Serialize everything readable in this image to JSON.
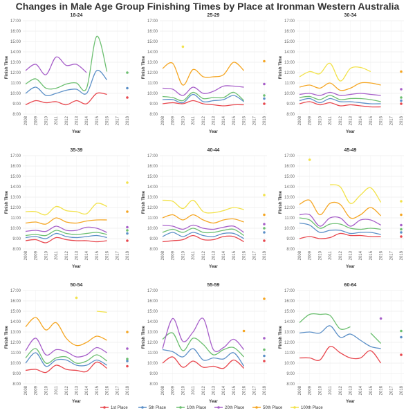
{
  "title": "Changes in Male Age Group Finishing Times by Place at Ironman Western Australia",
  "x": [
    2008,
    2009,
    2010,
    2011,
    2012,
    2013,
    2014,
    2015,
    2016,
    2017,
    2018
  ],
  "ylim": [
    8,
    17
  ],
  "yticks": [
    {
      "value": 8,
      "label": "8:00"
    },
    {
      "value": 9,
      "label": "9:00"
    },
    {
      "value": 10,
      "label": "10:00"
    },
    {
      "value": 11,
      "label": "11:00"
    },
    {
      "value": 12,
      "label": "12:00"
    },
    {
      "value": 13,
      "label": "13:00"
    },
    {
      "value": 14,
      "label": "14:00"
    },
    {
      "value": 15,
      "label": "15:00"
    },
    {
      "value": 16,
      "label": "16:00"
    },
    {
      "value": 17,
      "label": "17:00"
    }
  ],
  "xlabel": "Year",
  "ylabel": "Finish Time",
  "grid": true,
  "legend": [
    {
      "name": "1st Place",
      "color": "#e8474e"
    },
    {
      "name": "5th Place",
      "color": "#5b8fc7"
    },
    {
      "name": "10th Place",
      "color": "#6cbf70"
    },
    {
      "name": "20th Place",
      "color": "#a75fc9"
    },
    {
      "name": "50th Place",
      "color": "#f5a623"
    },
    {
      "name": "100th Place",
      "color": "#f2e24a"
    }
  ],
  "chart_data": [
    {
      "type": "line",
      "title": "18-24",
      "series": [
        {
          "values": [
            8.9,
            9.3,
            9.1,
            9.2,
            8.9,
            9.3,
            9.0,
            10.0,
            9.9,
            null,
            9.6
          ]
        },
        {
          "values": [
            10.0,
            10.6,
            9.8,
            10.0,
            10.3,
            10.4,
            10.0,
            12.2,
            11.3,
            null,
            10.5
          ]
        },
        {
          "values": [
            10.9,
            11.4,
            10.5,
            10.5,
            10.9,
            11.0,
            10.5,
            15.5,
            12.1,
            null,
            12.0
          ]
        },
        {
          "values": [
            12.2,
            12.8,
            11.8,
            13.5,
            12.7,
            12.8,
            12.0,
            null,
            null,
            null,
            null
          ]
        },
        {
          "values": [
            null,
            null,
            null,
            null,
            null,
            null,
            null,
            null,
            null,
            null,
            null
          ]
        },
        {
          "values": [
            null,
            null,
            null,
            null,
            null,
            null,
            null,
            null,
            null,
            null,
            null
          ]
        }
      ]
    },
    {
      "type": "line",
      "title": "25-29",
      "series": [
        {
          "values": [
            9.0,
            9.1,
            9.0,
            9.3,
            9.0,
            8.9,
            8.8,
            8.9,
            8.9,
            null,
            9.0
          ]
        },
        {
          "values": [
            9.4,
            9.4,
            9.1,
            9.9,
            9.2,
            9.3,
            9.4,
            9.8,
            9.2,
            null,
            9.5
          ]
        },
        {
          "values": [
            9.7,
            9.6,
            9.3,
            10.1,
            9.5,
            9.6,
            9.6,
            10.1,
            9.3,
            null,
            9.8
          ]
        },
        {
          "values": [
            10.5,
            10.4,
            9.8,
            10.6,
            10.0,
            10.2,
            10.7,
            10.7,
            10.6,
            null,
            10.9
          ]
        },
        {
          "values": [
            12.4,
            12.9,
            10.8,
            12.3,
            11.6,
            11.6,
            11.8,
            13.0,
            12.2,
            null,
            13.1
          ]
        },
        {
          "values": [
            null,
            null,
            14.5,
            null,
            null,
            null,
            null,
            null,
            null,
            null,
            null
          ]
        }
      ]
    },
    {
      "type": "line",
      "title": "30-34",
      "series": [
        {
          "values": [
            9.0,
            9.2,
            8.9,
            9.1,
            8.8,
            8.9,
            8.8,
            8.7,
            8.7,
            null,
            9.0
          ]
        },
        {
          "values": [
            9.3,
            9.5,
            9.1,
            9.5,
            9.2,
            9.2,
            9.1,
            9.0,
            9.0,
            null,
            9.3
          ]
        },
        {
          "values": [
            9.6,
            9.7,
            9.4,
            9.8,
            9.4,
            9.5,
            9.5,
            9.4,
            9.2,
            null,
            9.6
          ]
        },
        {
          "values": [
            9.9,
            10.0,
            9.8,
            10.1,
            9.8,
            9.9,
            10.0,
            9.9,
            9.8,
            null,
            10.4
          ]
        },
        {
          "values": [
            10.6,
            10.8,
            10.5,
            11.0,
            10.3,
            10.5,
            11.0,
            11.0,
            10.8,
            null,
            12.1
          ]
        },
        {
          "values": [
            11.6,
            12.1,
            11.9,
            12.9,
            11.2,
            12.4,
            12.5,
            12.1,
            null,
            null,
            null
          ]
        }
      ]
    },
    {
      "type": "line",
      "title": "35-39",
      "series": [
        {
          "values": [
            8.8,
            8.9,
            8.6,
            9.1,
            8.9,
            8.8,
            8.8,
            8.7,
            8.8,
            null,
            8.8
          ]
        },
        {
          "values": [
            9.1,
            9.2,
            9.0,
            9.5,
            9.2,
            9.1,
            9.2,
            9.3,
            9.1,
            null,
            9.5
          ]
        },
        {
          "values": [
            9.3,
            9.4,
            9.3,
            9.8,
            9.5,
            9.4,
            9.5,
            9.6,
            9.4,
            null,
            9.8
          ]
        },
        {
          "values": [
            9.7,
            9.8,
            9.7,
            10.2,
            9.8,
            9.8,
            10.1,
            10.0,
            9.6,
            null,
            10.1
          ]
        },
        {
          "values": [
            10.5,
            10.6,
            10.4,
            11.0,
            10.6,
            10.5,
            10.7,
            10.8,
            10.8,
            null,
            11.6
          ]
        },
        {
          "values": [
            11.6,
            11.6,
            11.3,
            12.1,
            11.7,
            11.6,
            11.4,
            12.4,
            12.1,
            null,
            14.4
          ]
        }
      ]
    },
    {
      "type": "line",
      "title": "40-44",
      "series": [
        {
          "values": [
            8.7,
            8.8,
            8.9,
            9.3,
            8.9,
            8.9,
            9.2,
            9.2,
            8.7,
            null,
            8.8
          ]
        },
        {
          "values": [
            9.2,
            9.6,
            9.2,
            9.6,
            9.3,
            9.2,
            9.5,
            9.5,
            9.0,
            null,
            9.6
          ]
        },
        {
          "values": [
            9.6,
            9.9,
            9.6,
            10.0,
            9.6,
            9.6,
            9.8,
            9.9,
            9.3,
            null,
            10.0
          ]
        },
        {
          "values": [
            10.3,
            10.2,
            9.9,
            10.3,
            10.0,
            9.9,
            10.1,
            10.2,
            9.6,
            null,
            10.4
          ]
        },
        {
          "values": [
            11.0,
            11.3,
            10.8,
            11.3,
            10.8,
            10.5,
            10.8,
            10.9,
            10.6,
            null,
            11.3
          ]
        },
        {
          "values": [
            12.7,
            12.6,
            11.9,
            12.7,
            11.6,
            11.5,
            11.7,
            12.0,
            11.8,
            null,
            13.2
          ]
        }
      ]
    },
    {
      "type": "line",
      "title": "45-49",
      "series": [
        {
          "values": [
            9.0,
            9.2,
            9.0,
            9.1,
            9.5,
            9.3,
            9.3,
            9.2,
            9.2,
            null,
            9.2
          ]
        },
        {
          "values": [
            10.5,
            10.3,
            9.6,
            9.8,
            9.8,
            9.5,
            9.6,
            9.6,
            9.4,
            null,
            9.6
          ]
        },
        {
          "values": [
            11.0,
            10.8,
            10.0,
            10.4,
            10.4,
            10.0,
            9.9,
            10.0,
            9.9,
            null,
            9.9
          ]
        },
        {
          "values": [
            11.3,
            11.3,
            10.2,
            11.0,
            11.0,
            10.2,
            10.8,
            10.8,
            10.3,
            null,
            10.3
          ]
        },
        {
          "values": [
            12.3,
            12.7,
            11.3,
            12.4,
            12.3,
            11.0,
            11.3,
            12.0,
            11.2,
            null,
            11.3
          ]
        },
        {
          "values": [
            null,
            16.6,
            null,
            14.2,
            14.0,
            12.4,
            13.2,
            13.9,
            12.5,
            null,
            12.6
          ]
        }
      ]
    },
    {
      "type": "line",
      "title": "50-54",
      "series": [
        {
          "values": [
            9.3,
            9.4,
            9.1,
            9.8,
            9.4,
            9.3,
            9.2,
            10.1,
            9.5,
            null,
            9.7
          ]
        },
        {
          "values": [
            10.0,
            11.0,
            9.7,
            10.3,
            10.3,
            9.8,
            9.8,
            10.3,
            9.8,
            null,
            10.2
          ]
        },
        {
          "values": [
            10.5,
            11.4,
            10.0,
            10.5,
            10.6,
            10.0,
            10.2,
            10.8,
            10.2,
            null,
            10.4
          ]
        },
        {
          "values": [
            11.2,
            12.4,
            10.8,
            11.3,
            11.1,
            10.6,
            10.8,
            11.5,
            11.0,
            null,
            11.4
          ]
        },
        {
          "values": [
            13.5,
            14.4,
            13.2,
            13.9,
            12.4,
            11.7,
            12.0,
            12.6,
            12.2,
            null,
            13.0
          ]
        },
        {
          "values": [
            null,
            null,
            null,
            null,
            null,
            16.3,
            null,
            15.0,
            14.9,
            null,
            null
          ]
        }
      ]
    },
    {
      "type": "line",
      "title": "55-59",
      "series": [
        {
          "values": [
            10.0,
            10.6,
            9.6,
            10.2,
            9.6,
            9.7,
            9.5,
            10.3,
            9.5,
            null,
            10.2
          ]
        },
        {
          "values": [
            11.3,
            11.1,
            10.6,
            11.4,
            10.3,
            10.5,
            10.4,
            11.0,
            9.7,
            null,
            10.7
          ]
        },
        {
          "values": [
            12.3,
            12.9,
            11.2,
            12.4,
            11.8,
            10.8,
            11.3,
            11.5,
            10.6,
            null,
            11.3
          ]
        },
        {
          "values": [
            11.4,
            14.3,
            12.1,
            13.0,
            14.3,
            11.3,
            11.5,
            12.3,
            11.3,
            null,
            12.4
          ]
        },
        {
          "values": [
            null,
            null,
            null,
            null,
            null,
            null,
            null,
            null,
            13.1,
            null,
            16.2
          ]
        },
        {
          "values": [
            null,
            null,
            null,
            null,
            null,
            null,
            null,
            null,
            null,
            null,
            null
          ]
        }
      ]
    },
    {
      "type": "line",
      "title": "60-64",
      "series": [
        {
          "values": [
            10.5,
            10.5,
            10.3,
            11.6,
            11.0,
            10.5,
            10.5,
            11.2,
            10.0,
            null,
            10.8
          ]
        },
        {
          "values": [
            12.9,
            13.0,
            12.9,
            13.6,
            12.5,
            12.8,
            12.2,
            11.6,
            11.4,
            null,
            12.5
          ]
        },
        {
          "values": [
            13.9,
            14.7,
            14.7,
            14.6,
            13.3,
            13.5,
            null,
            12.9,
            11.9,
            null,
            13.1
          ]
        },
        {
          "values": [
            null,
            null,
            null,
            null,
            null,
            null,
            null,
            null,
            14.3,
            null,
            null
          ]
        },
        {
          "values": [
            null,
            null,
            null,
            null,
            null,
            null,
            null,
            null,
            null,
            null,
            null
          ]
        },
        {
          "values": [
            null,
            null,
            null,
            null,
            null,
            null,
            null,
            null,
            null,
            null,
            null
          ]
        }
      ]
    }
  ]
}
